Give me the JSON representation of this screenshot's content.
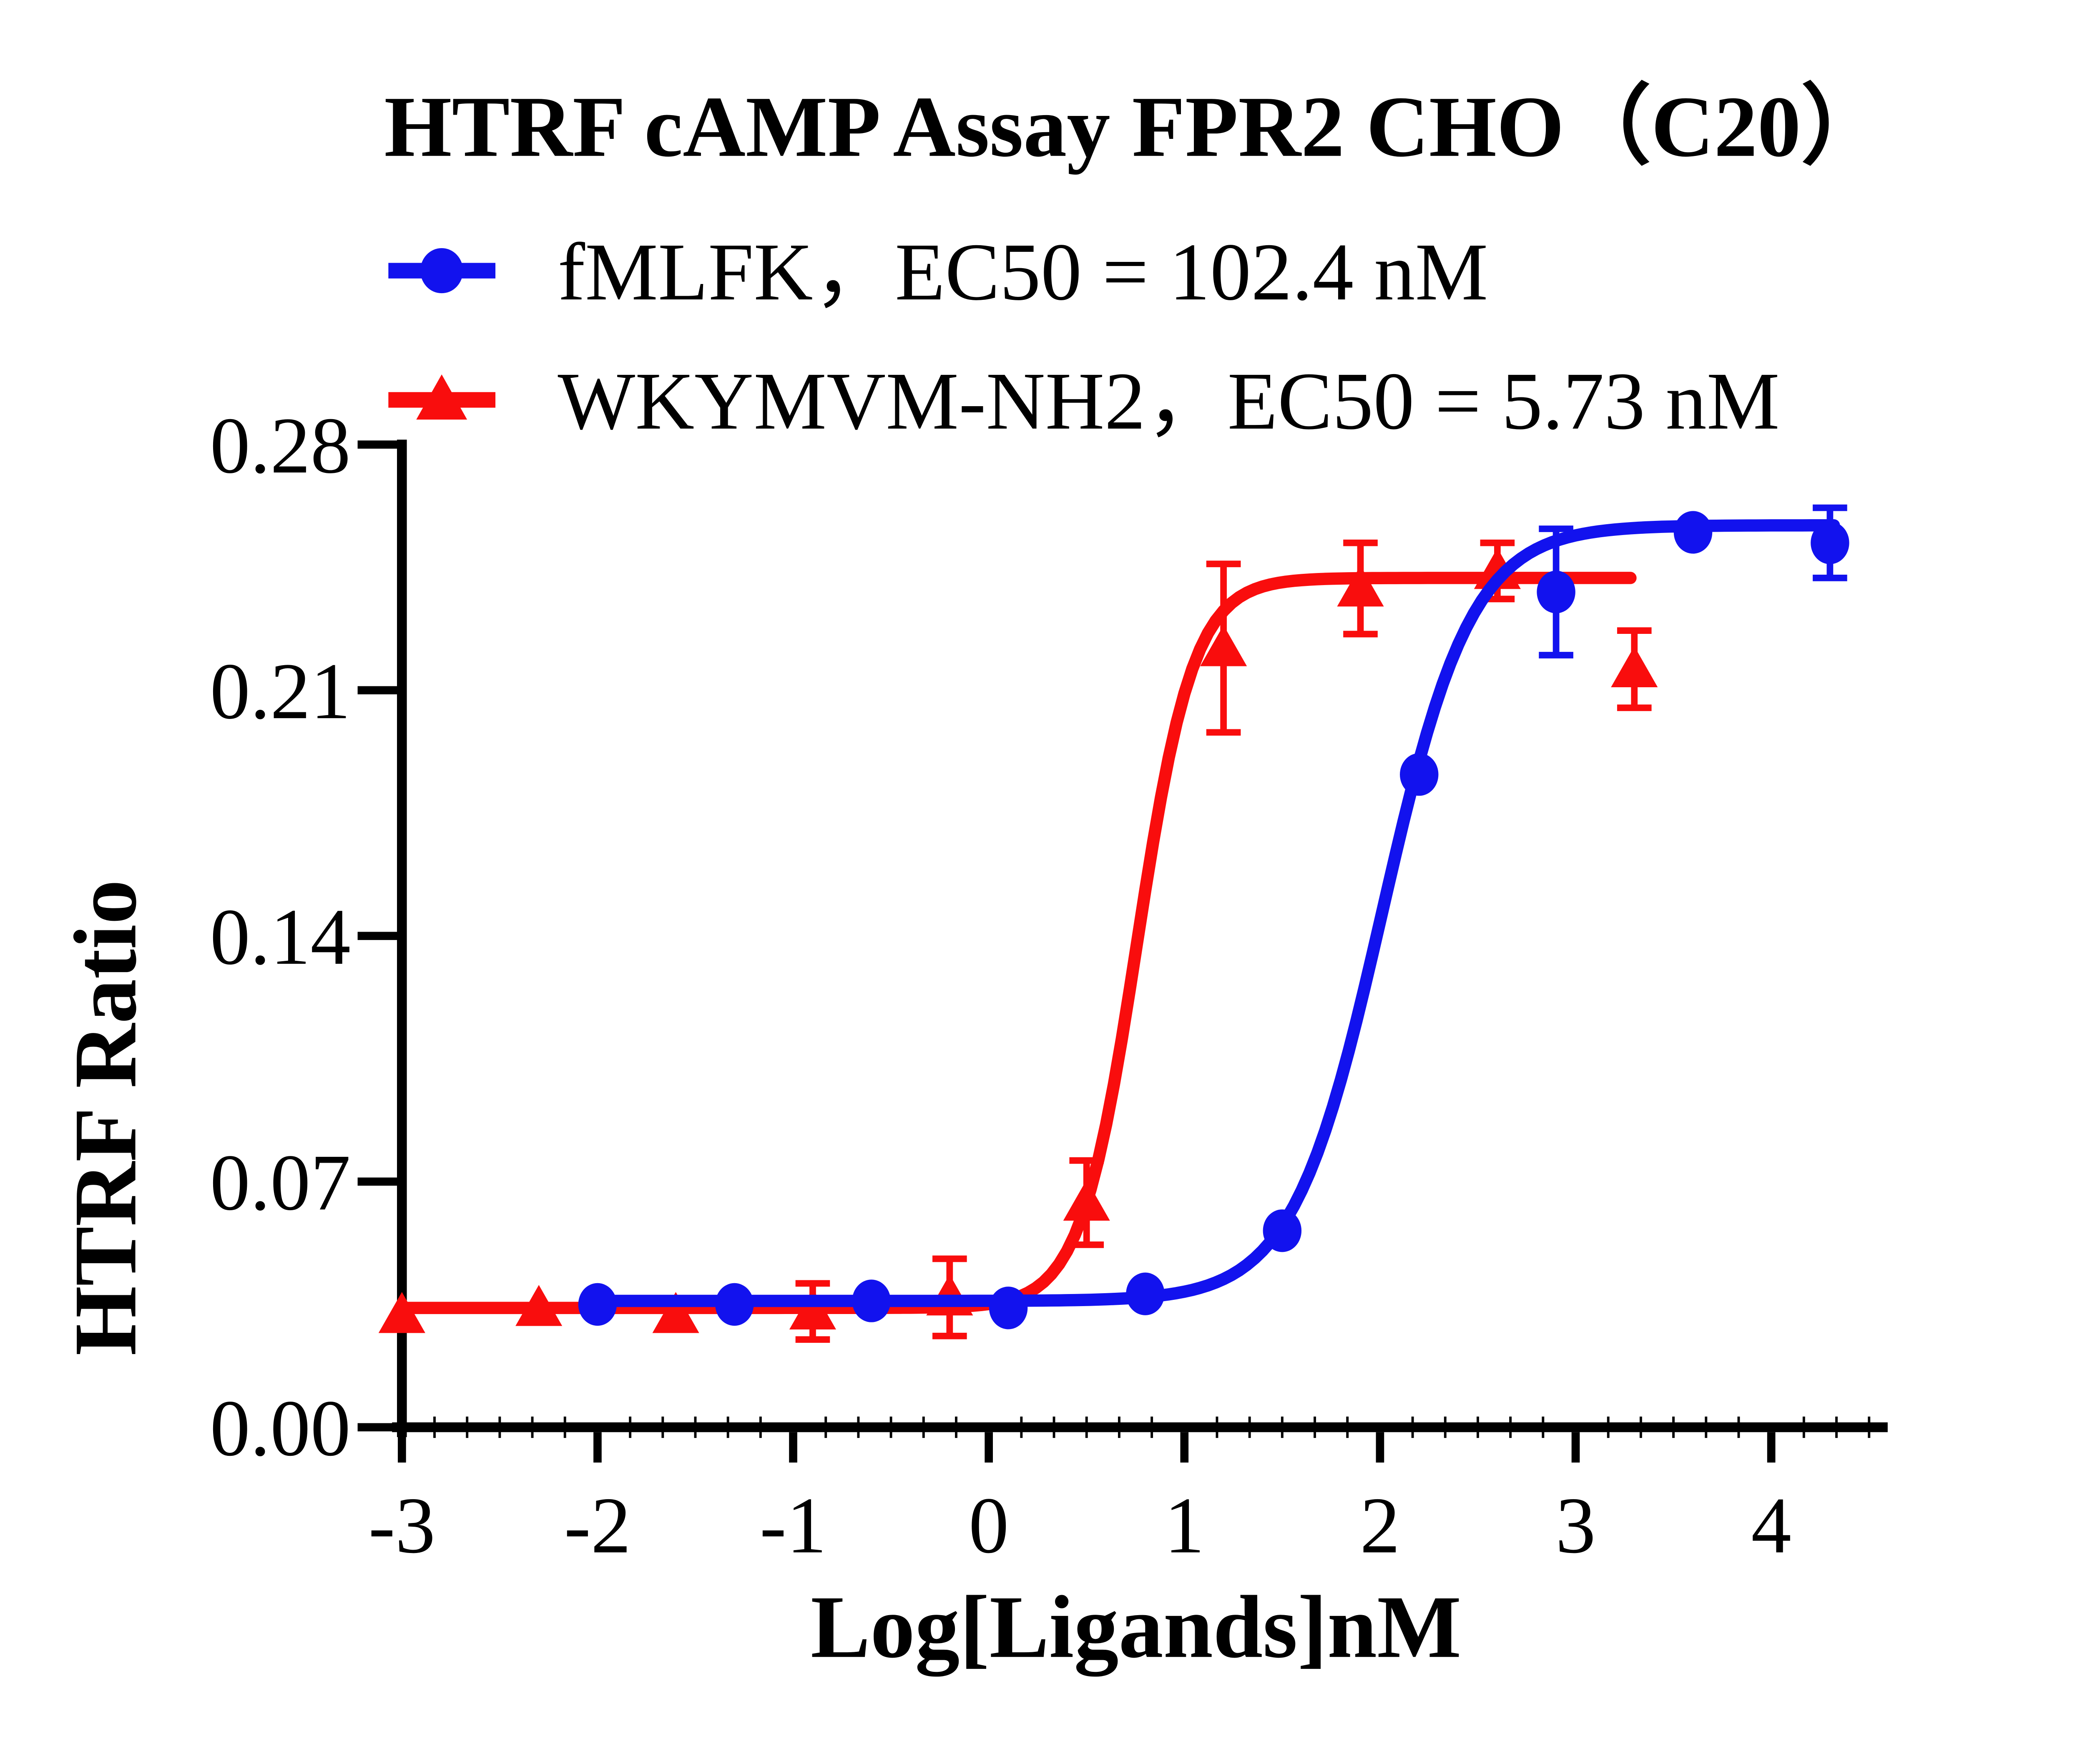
{
  "chart_data": {
    "type": "scatter",
    "subtype": "dose-response-curves-with-error-bars",
    "title": "HTRF cAMP Assay FPR2 CHO（C20）",
    "xlabel": "Log[Ligands]nM",
    "ylabel": "HTRF Ratio",
    "xlim": [
      -3,
      4.57
    ],
    "ylim": [
      0,
      0.28
    ],
    "x_ticks": [
      -3,
      -2,
      -1,
      0,
      1,
      2,
      3,
      4
    ],
    "x_tick_labels": [
      "-3",
      "-2",
      "-1",
      "0",
      "1",
      "2",
      "3",
      "4"
    ],
    "y_ticks": [
      0.0,
      0.07,
      0.14,
      0.21,
      0.28
    ],
    "y_tick_labels": [
      "0.00",
      "0.07",
      "0.14",
      "0.21",
      "0.28"
    ],
    "grid": false,
    "legend_position": "top-left-under-title",
    "axis_color": "#000000",
    "background_color": "#ffffff",
    "series": [
      {
        "name": "fMLFK",
        "legend_label": "fMLFK，EC50 = 102.4 nM",
        "ec50_nM": 102.4,
        "color": "#1212ee",
        "marker": "circle",
        "x": [
          -2.0,
          -1.3,
          -0.6,
          0.1,
          0.8,
          1.5,
          2.2,
          2.9,
          3.6,
          4.3
        ],
        "y": [
          0.035,
          0.035,
          0.036,
          0.034,
          0.038,
          0.056,
          0.186,
          0.238,
          0.255,
          0.252
        ],
        "yerr": [
          0,
          0,
          0,
          0,
          0,
          0,
          0,
          0.018,
          0,
          0.01
        ],
        "fit": {
          "bottom": 0.036,
          "top": 0.257,
          "log_ec50": 2.01,
          "hill": 1.9,
          "range": [
            -2.0,
            4.33
          ]
        }
      },
      {
        "name": "WKYMVM-NH2",
        "legend_label": "WKYMVM-NH2，EC50 = 5.73 nM",
        "ec50_nM": 5.73,
        "color": "#f90d0d",
        "marker": "triangle",
        "x": [
          -3.0,
          -2.3,
          -1.6,
          -0.9,
          -0.2,
          0.5,
          1.2,
          1.9,
          2.6,
          3.3
        ],
        "y": [
          0.032,
          0.034,
          0.032,
          0.033,
          0.037,
          0.064,
          0.222,
          0.239,
          0.244,
          0.216
        ],
        "yerr": [
          0,
          0,
          0,
          0.008,
          0.011,
          0.012,
          0.024,
          0.013,
          0.008,
          0.011
        ],
        "fit": {
          "bottom": 0.034,
          "top": 0.242,
          "log_ec50": 0.758,
          "hill": 3.0,
          "range": [
            -3.0,
            3.3
          ]
        }
      }
    ]
  }
}
